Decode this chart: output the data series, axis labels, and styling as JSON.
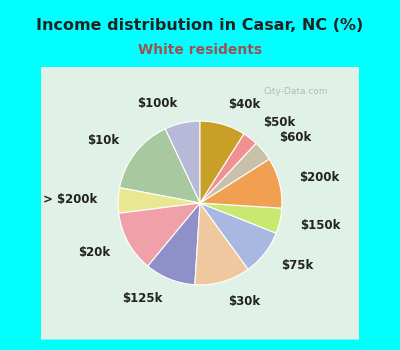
{
  "title": "Income distribution in Casar, NC (%)",
  "subtitle": "White residents",
  "title_color": "#222222",
  "subtitle_color": "#a05050",
  "background_outer": "#00ffff",
  "background_inner": "#e8f5ee",
  "labels": [
    "$100k",
    "$10k",
    "> $200k",
    "$20k",
    "$125k",
    "$30k",
    "$75k",
    "$150k",
    "$200k",
    "$60k",
    "$50k",
    "$40k"
  ],
  "sizes": [
    7,
    15,
    5,
    12,
    10,
    11,
    9,
    5,
    10,
    4,
    3,
    9
  ],
  "colors": [
    "#b8b8d8",
    "#a8c8a0",
    "#e8e890",
    "#f0a0a8",
    "#9090c8",
    "#f0c8a0",
    "#a8b8e0",
    "#c8e870",
    "#f0a050",
    "#c8c0a8",
    "#f09090",
    "#c8a028"
  ],
  "startangle": 90,
  "label_fontsize": 8.5,
  "wedge_linewidth": 0.8,
  "wedge_edgecolor": "#ffffff"
}
